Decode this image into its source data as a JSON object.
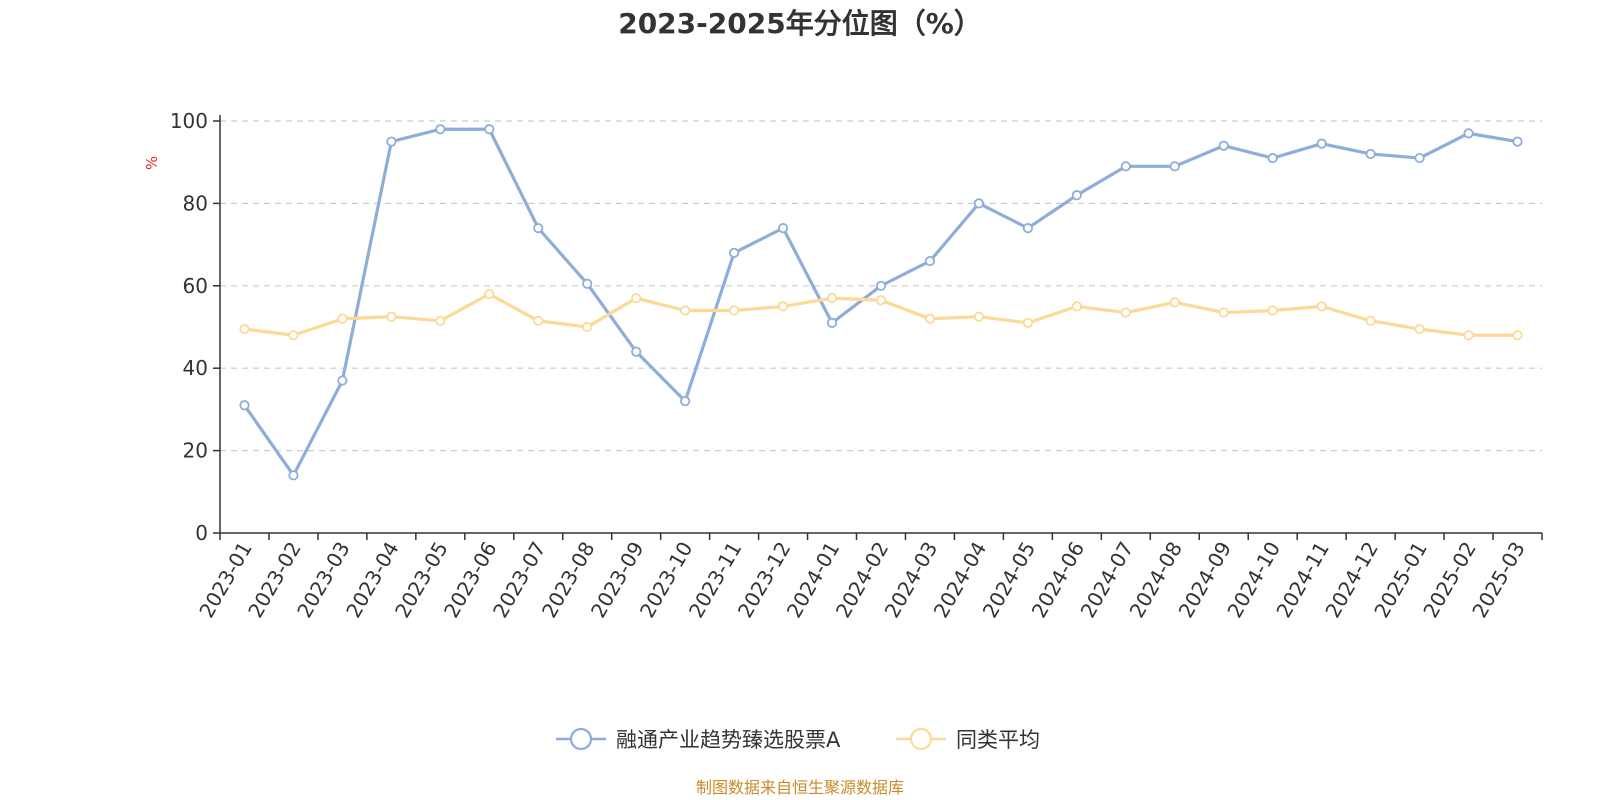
{
  "chart_data": {
    "type": "line",
    "title": "2023-2025年分位图（%）",
    "ylabel": "%",
    "xlabel": "",
    "ylim": [
      0,
      100
    ],
    "yticks": [
      0,
      20,
      40,
      60,
      80,
      100
    ],
    "grid": true,
    "legend_position": "bottom",
    "categories": [
      "2023-01",
      "2023-02",
      "2023-03",
      "2023-04",
      "2023-05",
      "2023-06",
      "2023-07",
      "2023-08",
      "2023-09",
      "2023-10",
      "2023-11",
      "2023-12",
      "2024-01",
      "2024-02",
      "2024-03",
      "2024-04",
      "2024-05",
      "2024-06",
      "2024-07",
      "2024-08",
      "2024-09",
      "2024-10",
      "2024-11",
      "2024-12",
      "2025-01",
      "2025-02",
      "2025-03"
    ],
    "series": [
      {
        "name": "融通产业趋势臻选股票A",
        "color": "#8eadd9",
        "values": [
          31,
          14,
          37,
          95,
          98,
          98,
          74,
          60.5,
          44,
          32,
          68,
          74,
          51,
          60,
          66,
          80,
          74,
          82,
          89,
          89,
          94,
          91,
          94.5,
          92,
          91,
          97,
          95
        ]
      },
      {
        "name": "同类平均",
        "color": "#fcd997",
        "values": [
          49.5,
          48,
          52,
          52.5,
          51.5,
          58,
          51.5,
          50,
          57,
          54,
          54,
          55,
          57,
          56.5,
          52,
          52.5,
          51,
          55,
          53.5,
          56,
          53.5,
          54,
          55,
          51.5,
          49.5,
          48,
          48
        ]
      }
    ]
  },
  "source": "制图数据来自恒生聚源数据库"
}
